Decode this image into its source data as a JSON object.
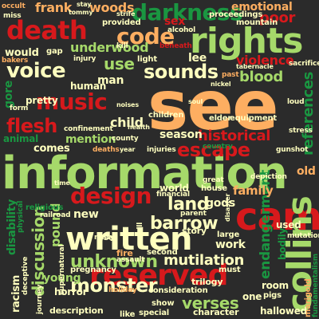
{
  "palette": {
    "background": "#2b2b2b",
    "red": "#d7191c",
    "orange": "#f4a261",
    "peach": "#fdae61",
    "green": "#1a9641",
    "lightgreen": "#a6d96a",
    "pale": "#ffffbf"
  },
  "words": [
    {
      "text": "see",
      "color": "#fdae61"
    },
    {
      "text": "information",
      "color": "#a6d96a"
    },
    {
      "text": "rights",
      "color": "#a6d96a"
    },
    {
      "text": "cam",
      "color": "#d7191c"
    },
    {
      "text": "written",
      "color": "#ffffbf"
    },
    {
      "text": "reserved",
      "color": "#d7191c"
    },
    {
      "text": "death",
      "color": "#d7191c"
    },
    {
      "text": "code",
      "color": "#fdae61"
    },
    {
      "text": "darkness",
      "color": "#1a9641"
    },
    {
      "text": "music",
      "color": "#d7191c"
    },
    {
      "text": "voice",
      "color": "#ffffbf"
    },
    {
      "text": "sounds",
      "color": "#ffffbf"
    },
    {
      "text": "collins",
      "color": "#a6d96a"
    },
    {
      "text": "design",
      "color": "#d7191c"
    },
    {
      "text": "monster",
      "color": "#ffffbf"
    },
    {
      "text": "flesh",
      "color": "#d7191c"
    },
    {
      "text": "discussion",
      "color": "#a6d96a"
    },
    {
      "text": "escape",
      "color": "#d7191c"
    },
    {
      "text": "unknown",
      "color": "#a6d96a"
    },
    {
      "text": "land",
      "color": "#ffffbf"
    },
    {
      "text": "barrow",
      "color": "#ffffbf"
    },
    {
      "text": "mutilation",
      "color": "#ffffbf"
    },
    {
      "text": "verses",
      "color": "#a6d96a"
    },
    {
      "text": "trauma",
      "color": "#ffffbf"
    },
    {
      "text": "endangerment",
      "color": "#1a9641"
    },
    {
      "text": "references",
      "color": "#1a9641"
    },
    {
      "text": "historical",
      "color": "#d7191c"
    },
    {
      "text": "underwood",
      "color": "#a6d96a"
    },
    {
      "text": "blood",
      "color": "#a6d96a"
    },
    {
      "text": "violence",
      "color": "#d7191c"
    },
    {
      "text": "frank",
      "color": "#fdae61"
    },
    {
      "text": "woods",
      "color": "#fdae61"
    },
    {
      "text": "poor",
      "color": "#d7191c"
    },
    {
      "text": "emotional",
      "color": "#fdae61"
    },
    {
      "text": "use",
      "color": "#a6d96a"
    },
    {
      "text": "child",
      "color": "#ffffbf"
    },
    {
      "text": "season",
      "color": "#ffffbf"
    },
    {
      "text": "mention",
      "color": "#a6d96a"
    },
    {
      "text": "family",
      "color": "#fdae61"
    },
    {
      "text": "gods",
      "color": "#ffffbf"
    },
    {
      "text": "work",
      "color": "#ffffbf"
    },
    {
      "text": "young",
      "color": "#a6d96a"
    },
    {
      "text": "pound",
      "color": "#a6d96a"
    },
    {
      "text": "new",
      "color": "#ffffbf"
    },
    {
      "text": "disability",
      "color": "#1a9641"
    },
    {
      "text": "would",
      "color": "#ffffbf"
    },
    {
      "text": "gore",
      "color": "#1a9641"
    },
    {
      "text": "man",
      "color": "#ffffbf"
    },
    {
      "text": "pretty",
      "color": "#ffffbf"
    },
    {
      "text": "comes",
      "color": "#ffffbf"
    },
    {
      "text": "animal",
      "color": "#1a9641"
    },
    {
      "text": "sex",
      "color": "#d7191c"
    },
    {
      "text": "lee",
      "color": "#ffffbf"
    },
    {
      "text": "human",
      "color": "#ffffbf"
    },
    {
      "text": "old",
      "color": "#fdae61"
    },
    {
      "text": "racism",
      "color": "#ffffbf"
    },
    {
      "text": "horror",
      "color": "#ffffbf"
    },
    {
      "text": "description",
      "color": "#ffffbf"
    },
    {
      "text": "character",
      "color": "#ffffbf"
    },
    {
      "text": "hallowed",
      "color": "#ffffbf"
    },
    {
      "text": "one",
      "color": "#ffffbf"
    },
    {
      "text": "room",
      "color": "#ffffbf"
    },
    {
      "text": "trilogy",
      "color": "#ffffbf"
    },
    {
      "text": "bodily",
      "color": "#1a9641"
    },
    {
      "text": "used",
      "color": "#ffffbf"
    },
    {
      "text": "proceedings",
      "color": "#ffffbf"
    },
    {
      "text": "mountain",
      "color": "#ffffbf"
    },
    {
      "text": "equipment",
      "color": "#ffffbf"
    },
    {
      "text": "story",
      "color": "#ffffbf"
    },
    {
      "text": "fire",
      "color": "#fdae61"
    },
    {
      "text": "house",
      "color": "#ffffbf"
    },
    {
      "text": "world",
      "color": "#ffffbf"
    },
    {
      "text": "financial",
      "color": "#ffffbf"
    },
    {
      "text": "parent",
      "color": "#ffffbf"
    },
    {
      "text": "set",
      "color": "#ffffbf"
    },
    {
      "text": "pregnancy",
      "color": "#ffffbf"
    },
    {
      "text": "second",
      "color": "#ffffbf"
    },
    {
      "text": "consideration",
      "color": "#ffffbf"
    },
    {
      "text": "holiday",
      "color": "#fdae61"
    },
    {
      "text": "like",
      "color": "#ffffbf"
    },
    {
      "text": "special",
      "color": "#ffffbf"
    },
    {
      "text": "show",
      "color": "#ffffbf"
    },
    {
      "text": "children",
      "color": "#ffffbf"
    },
    {
      "text": "elder",
      "color": "#ffffbf"
    },
    {
      "text": "country",
      "color": "#1a9641"
    },
    {
      "text": "injury",
      "color": "#ffffbf"
    },
    {
      "text": "light",
      "color": "#ffffbf"
    },
    {
      "text": "provided",
      "color": "#ffffbf"
    },
    {
      "text": "alcohol",
      "color": "#ffffbf"
    },
    {
      "text": "form",
      "color": "#ffffbf"
    },
    {
      "text": "gap",
      "color": "#ffffbf"
    },
    {
      "text": "bakers",
      "color": "#fdae61"
    },
    {
      "text": "miss",
      "color": "#ffffbf"
    },
    {
      "text": "occult",
      "color": "#fdae61"
    },
    {
      "text": "tommy",
      "color": "#ffffbf"
    },
    {
      "text": "stay",
      "color": "#ffffbf"
    },
    {
      "text": "strife",
      "color": "#ffffbf"
    },
    {
      "text": "loud",
      "color": "#ffffbf"
    },
    {
      "text": "stress",
      "color": "#ffffbf"
    },
    {
      "text": "marigold",
      "color": "#fdae61"
    },
    {
      "text": "fundamentalism",
      "color": "#1a9641"
    },
    {
      "text": "journey",
      "color": "#ffffbf"
    },
    {
      "text": "confinement",
      "color": "#ffffbf"
    },
    {
      "text": "railroad",
      "color": "#ffffbf"
    },
    {
      "text": "religious",
      "color": "#1a9641"
    },
    {
      "text": "physical",
      "color": "#1a9641"
    },
    {
      "text": "deceptive",
      "color": "#ffffbf"
    },
    {
      "text": "supernatural",
      "color": "#ffffbf"
    },
    {
      "text": "rusty",
      "color": "#ffffbf"
    },
    {
      "text": "assault",
      "color": "#ffffbf"
    },
    {
      "text": "large",
      "color": "#ffffbf"
    },
    {
      "text": "must",
      "color": "#ffffbf"
    },
    {
      "text": "pigs",
      "color": "#ffffbf"
    },
    {
      "text": "noises",
      "color": "#ffffbf"
    },
    {
      "text": "past",
      "color": "#fdae61"
    },
    {
      "text": "tabernacle",
      "color": "#ffffbf"
    },
    {
      "text": "great",
      "color": "#ffffbf"
    },
    {
      "text": "deaths",
      "color": "#fdae61"
    },
    {
      "text": "year",
      "color": "#ffffbf"
    },
    {
      "text": "injuries",
      "color": "#ffffbf"
    },
    {
      "text": "health",
      "color": "#ffffbf"
    },
    {
      "text": "quill",
      "color": "#ffffbf"
    },
    {
      "text": "time",
      "color": "#ffffbf"
    },
    {
      "text": "disaster",
      "color": "#ffffbf"
    },
    {
      "text": "kill",
      "color": "#ffffbf"
    },
    {
      "text": "soul",
      "color": "#ffffbf"
    },
    {
      "text": "nickel",
      "color": "#ffffbf"
    },
    {
      "text": "beneath",
      "color": "#d7191c"
    },
    {
      "text": "sacrifice",
      "color": "#ffffbf"
    },
    {
      "text": "mutation",
      "color": "#ffffbf"
    },
    {
      "text": "gunshot",
      "color": "#ffffbf"
    },
    {
      "text": "county",
      "color": "#ffffbf"
    },
    {
      "text": "depiction",
      "color": "#ffffbf"
    }
  ]
}
